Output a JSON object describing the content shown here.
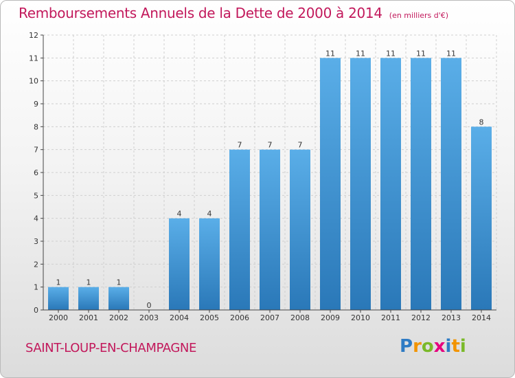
{
  "title": "Remboursements Annuels de la Dette de 2000 à 2014",
  "unit_note": "(en milliers d'€)",
  "location": "SAINT-LOUP-EN-CHAMPAGNE",
  "logo": {
    "text": "Proxiti",
    "letters": [
      {
        "ch": "P",
        "color": "#2e7bc4"
      },
      {
        "ch": "r",
        "color": "#f29400"
      },
      {
        "ch": "o",
        "color": "#7ab929"
      },
      {
        "ch": "x",
        "color": "#e6007e"
      },
      {
        "ch": "i",
        "color": "#2e7bc4"
      },
      {
        "ch": "t",
        "color": "#f29400"
      },
      {
        "ch": "i",
        "color": "#7ab929"
      }
    ]
  },
  "colors": {
    "title": "#c2185b",
    "bar_top": "#5aaee8",
    "bar_bottom": "#2a78b8",
    "axis": "#444444",
    "grid": "#cfcfcf"
  },
  "chart_data": {
    "type": "bar",
    "categories": [
      "2000",
      "2001",
      "2002",
      "2003",
      "2004",
      "2005",
      "2006",
      "2007",
      "2008",
      "2009",
      "2010",
      "2011",
      "2012",
      "2013",
      "2014"
    ],
    "values": [
      1,
      1,
      1,
      0,
      4,
      4,
      7,
      7,
      7,
      11,
      11,
      11,
      11,
      11,
      8
    ],
    "data_labels": [
      "1",
      "1",
      "1",
      "0",
      "4",
      "4",
      "7",
      "7",
      "7",
      "11",
      "11",
      "11",
      "11",
      "11",
      "8"
    ],
    "y_ticks": [
      0,
      1,
      2,
      3,
      4,
      5,
      6,
      7,
      8,
      9,
      10,
      11,
      12
    ],
    "ylim": [
      0,
      12
    ],
    "grid": true,
    "legend": "none"
  }
}
